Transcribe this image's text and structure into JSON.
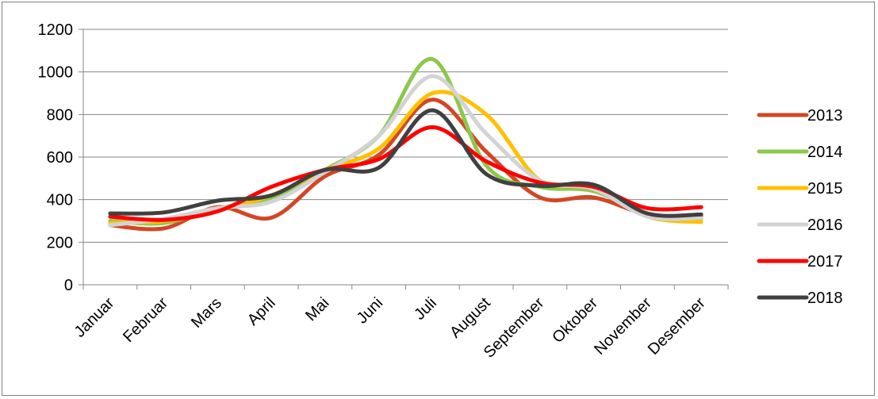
{
  "chart_data": {
    "type": "line",
    "title": "",
    "xlabel": "",
    "ylabel": "",
    "ylim": [
      0,
      1200
    ],
    "yticks": [
      0,
      200,
      400,
      600,
      800,
      1000,
      1200
    ],
    "grid": "horizontal",
    "smooth": true,
    "legend_position": "right",
    "categories": [
      "Januar",
      "Februar",
      "Mars",
      "April",
      "Mai",
      "Juni",
      "Juli",
      "August",
      "September",
      "Oktober",
      "November",
      "Desember"
    ],
    "series": [
      {
        "name": "2013",
        "color": "#D24726",
        "values": [
          280,
          265,
          365,
          315,
          510,
          610,
          870,
          625,
          410,
          410,
          330,
          320
        ]
      },
      {
        "name": "2014",
        "color": "#8CC84B",
        "values": [
          300,
          290,
          360,
          400,
          540,
          700,
          1060,
          560,
          460,
          440,
          330,
          310
        ]
      },
      {
        "name": "2015",
        "color": "#FFC000",
        "values": [
          290,
          300,
          350,
          420,
          540,
          640,
          900,
          800,
          490,
          460,
          320,
          295
        ]
      },
      {
        "name": "2016",
        "color": "#D3D3D3",
        "values": [
          280,
          310,
          360,
          390,
          530,
          700,
          980,
          710,
          490,
          450,
          320,
          315
        ]
      },
      {
        "name": "2017",
        "color": "#FF0000",
        "values": [
          320,
          305,
          345,
          460,
          540,
          590,
          740,
          580,
          480,
          460,
          360,
          365
        ]
      },
      {
        "name": "2018",
        "color": "#404040",
        "values": [
          335,
          340,
          395,
          420,
          540,
          550,
          820,
          520,
          465,
          470,
          335,
          330
        ]
      }
    ]
  }
}
